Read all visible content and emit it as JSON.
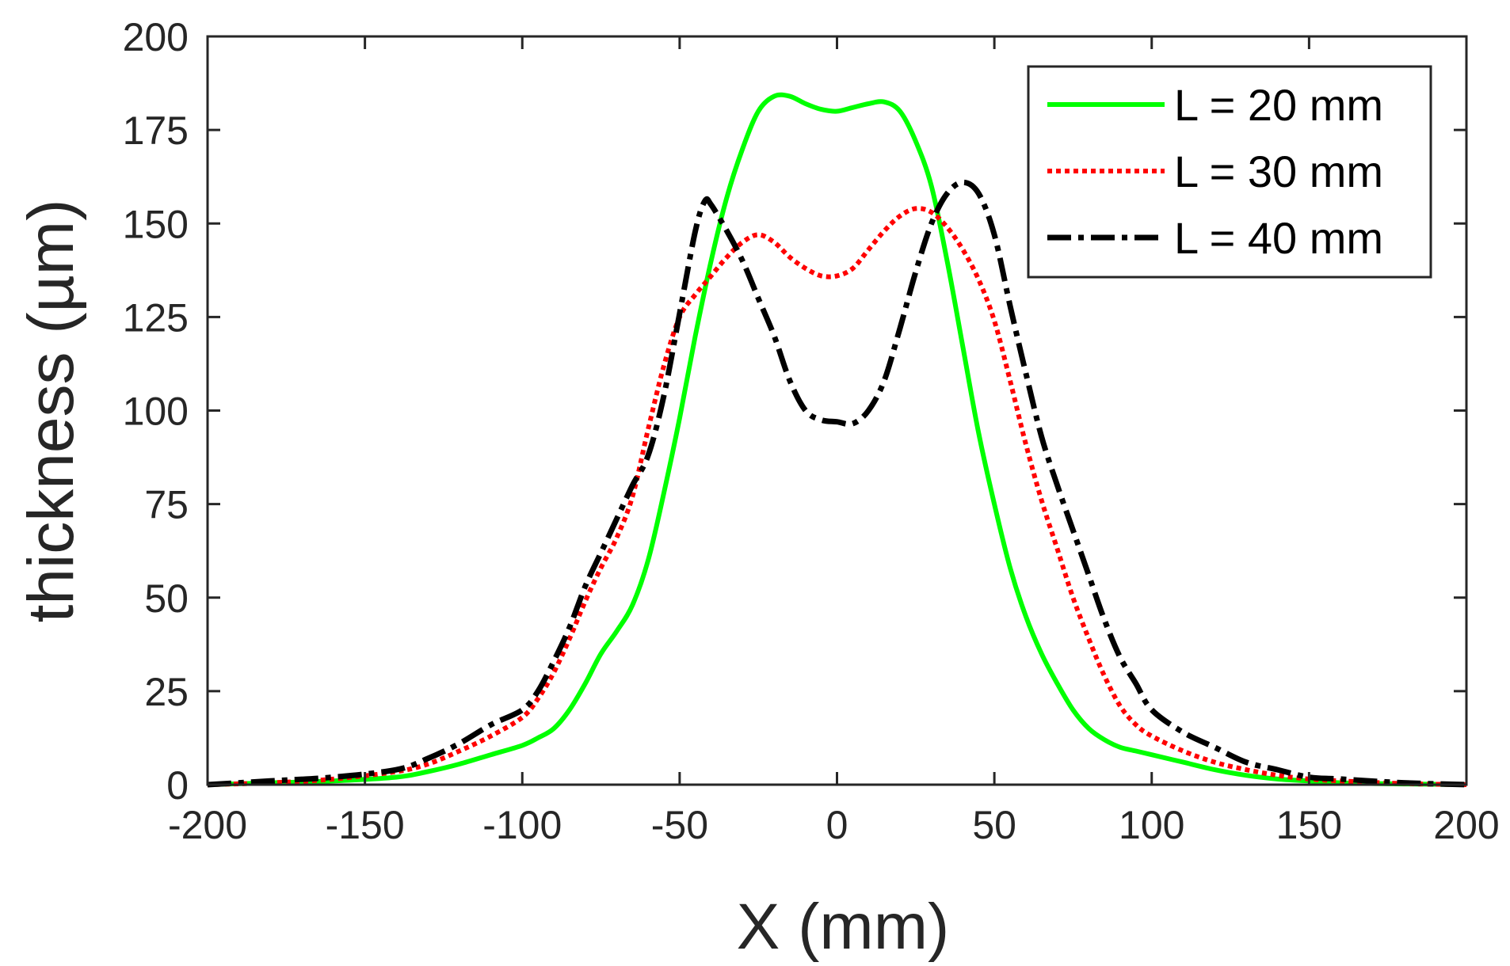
{
  "chart_data": {
    "type": "line",
    "title": "",
    "xlabel": "X (mm)",
    "ylabel": "thickness (µm)",
    "xlim": [
      -200,
      200
    ],
    "ylim": [
      0,
      200
    ],
    "xticks": [
      -200,
      -150,
      -100,
      -50,
      0,
      50,
      100,
      150,
      200
    ],
    "yticks": [
      0,
      25,
      50,
      75,
      100,
      125,
      150,
      175,
      200
    ],
    "grid": false,
    "legend_position": "top-right",
    "series": [
      {
        "name": "L = 20 mm",
        "color": "#00ff00",
        "style": "solid",
        "x": [
          -200,
          -180,
          -160,
          -140,
          -130,
          -120,
          -110,
          -100,
          -95,
          -90,
          -85,
          -80,
          -75,
          -70,
          -65,
          -60,
          -55,
          -50,
          -45,
          -40,
          -35,
          -30,
          -25,
          -20,
          -15,
          -10,
          -5,
          0,
          5,
          10,
          15,
          20,
          25,
          30,
          35,
          40,
          45,
          50,
          55,
          60,
          65,
          70,
          75,
          80,
          85,
          90,
          95,
          100,
          110,
          120,
          130,
          140,
          150,
          160,
          180,
          200
        ],
        "y": [
          0,
          0.5,
          1,
          2,
          3.5,
          5.5,
          8,
          10.5,
          12.5,
          15,
          20,
          27,
          35,
          41,
          48,
          60,
          78,
          98,
          120,
          140,
          157,
          170,
          180,
          184,
          184,
          182,
          180.5,
          180,
          181,
          182,
          182.5,
          180,
          172,
          160,
          140,
          117,
          94,
          75,
          58,
          45,
          35,
          27,
          20,
          15,
          12,
          10,
          9,
          8,
          6,
          4,
          2.5,
          1.5,
          1,
          0.5,
          0.2,
          0
        ]
      },
      {
        "name": "L = 30 mm",
        "color": "#ff0000",
        "style": "dotted",
        "x": [
          -200,
          -180,
          -160,
          -140,
          -130,
          -120,
          -110,
          -100,
          -95,
          -90,
          -85,
          -80,
          -75,
          -70,
          -65,
          -60,
          -55,
          -50,
          -45,
          -40,
          -35,
          -30,
          -25,
          -20,
          -15,
          -10,
          -5,
          0,
          5,
          10,
          15,
          20,
          25,
          30,
          35,
          40,
          45,
          50,
          55,
          60,
          65,
          70,
          75,
          80,
          85,
          90,
          95,
          100,
          110,
          120,
          130,
          140,
          150,
          160,
          180,
          200
        ],
        "y": [
          0,
          0.5,
          1.5,
          3.5,
          5.5,
          9,
          13,
          18,
          23,
          30,
          39,
          49,
          58,
          66,
          77,
          95,
          112,
          125,
          131,
          136,
          141,
          145,
          147,
          145,
          141,
          138,
          136,
          136,
          138,
          143,
          148,
          152,
          154,
          153,
          149,
          143,
          135,
          124,
          108,
          91,
          76,
          63,
          50,
          39,
          29,
          21,
          16,
          13,
          9,
          6,
          4,
          2.5,
          1.5,
          1,
          0.3,
          0
        ]
      },
      {
        "name": "L = 40 mm",
        "color": "#000000",
        "style": "dashdot",
        "x": [
          -200,
          -180,
          -160,
          -140,
          -130,
          -120,
          -110,
          -100,
          -95,
          -90,
          -85,
          -80,
          -75,
          -70,
          -65,
          -60,
          -55,
          -50,
          -45,
          -42,
          -40,
          -35,
          -30,
          -25,
          -20,
          -15,
          -10,
          -5,
          0,
          5,
          10,
          15,
          20,
          25,
          30,
          35,
          40,
          45,
          50,
          55,
          60,
          65,
          70,
          75,
          80,
          85,
          90,
          95,
          100,
          110,
          120,
          130,
          140,
          150,
          160,
          180,
          200
        ],
        "y": [
          0,
          1,
          2,
          4,
          7,
          11,
          16,
          20,
          25,
          33,
          42,
          53,
          62,
          71,
          80,
          88,
          104,
          126,
          148,
          156,
          155,
          148,
          140,
          130,
          120,
          108,
          100,
          97.5,
          97,
          96.5,
          100,
          108,
          122,
          137,
          150,
          158,
          161,
          158,
          147,
          128,
          110,
          93,
          80,
          68,
          56,
          44,
          34,
          27,
          20,
          14,
          10,
          6,
          4,
          2,
          1.5,
          0.5,
          0
        ]
      }
    ]
  }
}
